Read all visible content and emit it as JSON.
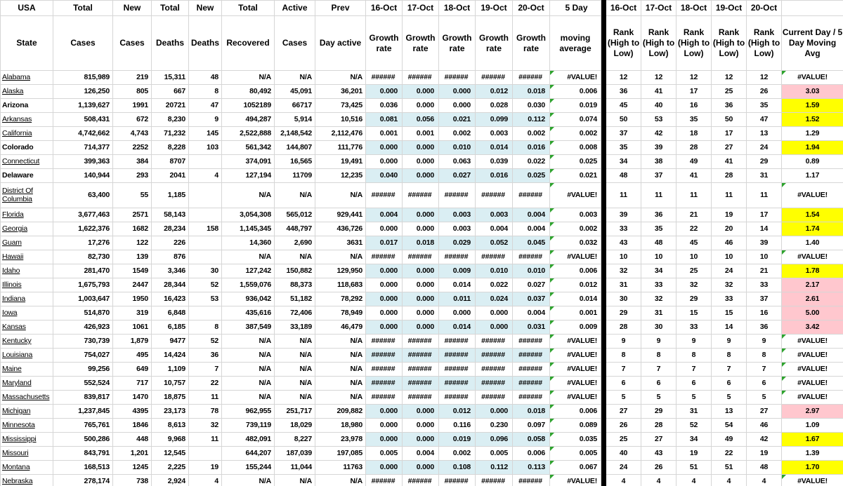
{
  "colors": {
    "band_blue": "#daeef3",
    "alert_pink": "#ffc7ce",
    "highlight_yellow": "#ffff00",
    "divider_black": "#000000",
    "gridline_gray": "#d6d6d6",
    "error_flag_green": "#2da32d"
  },
  "header": {
    "top": [
      "USA",
      "Total",
      "New",
      "Total",
      "New",
      "Total",
      "Active",
      "Prev",
      "16-Oct",
      "17-Oct",
      "18-Oct",
      "19-Oct",
      "20-Oct",
      "5 Day",
      "16-Oct",
      "17-Oct",
      "18-Oct",
      "19-Oct",
      "20-Oct",
      ""
    ],
    "bottom": [
      "State",
      "Cases",
      "Cases",
      "Deaths",
      "Deaths",
      "Recovered",
      "Cases",
      "Day active",
      "Growth rate",
      "Growth rate",
      "Growth rate",
      "Growth rate",
      "Growth rate",
      "moving average",
      "Rank (High to Low)",
      "Rank (High to Low)",
      "Rank (High to Low)",
      "Rank (High to Low)",
      "Rank (High to Low)",
      "Current Day / 5 Day Moving Avg"
    ]
  },
  "rows": [
    {
      "state": "Alabama",
      "style": "link",
      "double": false,
      "band": false,
      "cells": [
        "815,989",
        "219",
        "15,311",
        "48",
        "N/A",
        "N/A",
        "N/A"
      ],
      "growth": [
        "######",
        "######",
        "######",
        "######",
        "######"
      ],
      "avg": "#VALUE!",
      "ranks": [
        "12",
        "12",
        "12",
        "12",
        "12"
      ],
      "ratio": "#VALUE!",
      "ratio_bg": "white"
    },
    {
      "state": "Alaska",
      "style": "link",
      "double": false,
      "band": true,
      "cells": [
        "126,250",
        "805",
        "667",
        "8",
        "80,492",
        "45,091",
        "36,201"
      ],
      "growth": [
        "0.000",
        "0.000",
        "0.000",
        "0.012",
        "0.018"
      ],
      "avg": "0.006",
      "ranks": [
        "36",
        "41",
        "17",
        "25",
        "26"
      ],
      "ratio": "3.03",
      "ratio_bg": "pink"
    },
    {
      "state": "Arizona",
      "style": "bold",
      "double": false,
      "band": false,
      "cells": [
        "1,139,627",
        "1991",
        "20721",
        "47",
        "1052189",
        "66717",
        "73,425"
      ],
      "growth": [
        "0.036",
        "0.000",
        "0.000",
        "0.028",
        "0.030"
      ],
      "avg": "0.019",
      "ranks": [
        "45",
        "40",
        "16",
        "36",
        "35"
      ],
      "ratio": "1.59",
      "ratio_bg": "yellow"
    },
    {
      "state": "Arkansas",
      "style": "link",
      "double": false,
      "band": true,
      "cells": [
        "508,431",
        "672",
        "8,230",
        "9",
        "494,287",
        "5,914",
        "10,516"
      ],
      "growth": [
        "0.081",
        "0.056",
        "0.021",
        "0.099",
        "0.112"
      ],
      "avg": "0.074",
      "ranks": [
        "50",
        "53",
        "35",
        "50",
        "47"
      ],
      "ratio": "1.52",
      "ratio_bg": "yellow"
    },
    {
      "state": "California",
      "style": "link",
      "double": false,
      "band": false,
      "cells": [
        "4,742,662",
        "4,743",
        "71,232",
        "145",
        "2,522,888",
        "2,148,542",
        "2,112,476"
      ],
      "growth": [
        "0.001",
        "0.001",
        "0.002",
        "0.003",
        "0.002"
      ],
      "avg": "0.002",
      "ranks": [
        "37",
        "42",
        "18",
        "17",
        "13"
      ],
      "ratio": "1.29",
      "ratio_bg": "white"
    },
    {
      "state": "Colorado",
      "style": "bold",
      "double": false,
      "band": true,
      "cells": [
        "714,377",
        "2252",
        "8,228",
        "103",
        "561,342",
        "144,807",
        "111,776"
      ],
      "growth": [
        "0.000",
        "0.000",
        "0.010",
        "0.014",
        "0.016"
      ],
      "avg": "0.008",
      "ranks": [
        "35",
        "39",
        "28",
        "27",
        "24"
      ],
      "ratio": "1.94",
      "ratio_bg": "yellow"
    },
    {
      "state": "Connecticut",
      "style": "link",
      "double": false,
      "band": false,
      "cells": [
        "399,363",
        "384",
        "8707",
        "",
        "374,091",
        "16,565",
        "19,491"
      ],
      "growth": [
        "0.000",
        "0.000",
        "0.063",
        "0.039",
        "0.022"
      ],
      "avg": "0.025",
      "ranks": [
        "34",
        "38",
        "49",
        "41",
        "29"
      ],
      "ratio": "0.89",
      "ratio_bg": "white"
    },
    {
      "state": "Delaware",
      "style": "bold",
      "double": false,
      "band": true,
      "cells": [
        "140,944",
        "293",
        "2041",
        "4",
        "127,194",
        "11709",
        "12,235"
      ],
      "growth": [
        "0.040",
        "0.000",
        "0.027",
        "0.016",
        "0.025"
      ],
      "avg": "0.021",
      "ranks": [
        "48",
        "37",
        "41",
        "28",
        "31"
      ],
      "ratio": "1.17",
      "ratio_bg": "white"
    },
    {
      "state": "District Of Columbia",
      "style": "link",
      "double": true,
      "band": false,
      "cells": [
        "63,400",
        "55",
        "1,185",
        "",
        "N/A",
        "N/A",
        "N/A"
      ],
      "growth": [
        "######",
        "######",
        "######",
        "######",
        "######"
      ],
      "avg": "#VALUE!",
      "ranks": [
        "11",
        "11",
        "11",
        "11",
        "11"
      ],
      "ratio": "#VALUE!",
      "ratio_bg": "white"
    },
    {
      "state": "Florida",
      "style": "link",
      "double": false,
      "band": true,
      "cells": [
        "3,677,463",
        "2571",
        "58,143",
        "",
        "3,054,308",
        "565,012",
        "929,441"
      ],
      "growth": [
        "0.004",
        "0.000",
        "0.003",
        "0.003",
        "0.004"
      ],
      "avg": "0.003",
      "ranks": [
        "39",
        "36",
        "21",
        "19",
        "17"
      ],
      "ratio": "1.54",
      "ratio_bg": "yellow"
    },
    {
      "state": "Georgia",
      "style": "link",
      "double": false,
      "band": false,
      "cells": [
        "1,622,376",
        "1682",
        "28,234",
        "158",
        "1,145,345",
        "448,797",
        "436,726"
      ],
      "growth": [
        "0.000",
        "0.000",
        "0.003",
        "0.004",
        "0.004"
      ],
      "avg": "0.002",
      "ranks": [
        "33",
        "35",
        "22",
        "20",
        "14"
      ],
      "ratio": "1.74",
      "ratio_bg": "yellow"
    },
    {
      "state": "Guam",
      "style": "link",
      "double": false,
      "band": true,
      "cells": [
        "17,276",
        "122",
        "226",
        "",
        "14,360",
        "2,690",
        "3631"
      ],
      "growth": [
        "0.017",
        "0.018",
        "0.029",
        "0.052",
        "0.045"
      ],
      "avg": "0.032",
      "ranks": [
        "43",
        "48",
        "45",
        "46",
        "39"
      ],
      "ratio": "1.40",
      "ratio_bg": "white"
    },
    {
      "state": "Hawaii",
      "style": "link",
      "double": false,
      "band": false,
      "cells": [
        "82,730",
        "139",
        "876",
        "",
        "N/A",
        "N/A",
        "N/A"
      ],
      "growth": [
        "######",
        "######",
        "######",
        "######",
        "######"
      ],
      "avg": "#VALUE!",
      "ranks": [
        "10",
        "10",
        "10",
        "10",
        "10"
      ],
      "ratio": "#VALUE!",
      "ratio_bg": "white"
    },
    {
      "state": "Idaho",
      "style": "link",
      "double": false,
      "band": true,
      "cells": [
        "281,470",
        "1549",
        "3,346",
        "30",
        "127,242",
        "150,882",
        "129,950"
      ],
      "growth": [
        "0.000",
        "0.000",
        "0.009",
        "0.010",
        "0.010"
      ],
      "avg": "0.006",
      "ranks": [
        "32",
        "34",
        "25",
        "24",
        "21"
      ],
      "ratio": "1.78",
      "ratio_bg": "yellow"
    },
    {
      "state": "Illinois",
      "style": "link",
      "double": false,
      "band": false,
      "cells": [
        "1,675,793",
        "2447",
        "28,344",
        "52",
        "1,559,076",
        "88,373",
        "118,683"
      ],
      "growth": [
        "0.000",
        "0.000",
        "0.014",
        "0.022",
        "0.027"
      ],
      "avg": "0.012",
      "ranks": [
        "31",
        "33",
        "32",
        "32",
        "33"
      ],
      "ratio": "2.17",
      "ratio_bg": "pink"
    },
    {
      "state": "Indiana",
      "style": "link",
      "double": false,
      "band": true,
      "cells": [
        "1,003,647",
        "1950",
        "16,423",
        "53",
        "936,042",
        "51,182",
        "78,292"
      ],
      "growth": [
        "0.000",
        "0.000",
        "0.011",
        "0.024",
        "0.037"
      ],
      "avg": "0.014",
      "ranks": [
        "30",
        "32",
        "29",
        "33",
        "37"
      ],
      "ratio": "2.61",
      "ratio_bg": "pink"
    },
    {
      "state": "Iowa",
      "style": "link",
      "double": false,
      "band": false,
      "cells": [
        "514,870",
        "319",
        "6,848",
        "",
        "435,616",
        "72,406",
        "78,949"
      ],
      "growth": [
        "0.000",
        "0.000",
        "0.000",
        "0.000",
        "0.004"
      ],
      "avg": "0.001",
      "ranks": [
        "29",
        "31",
        "15",
        "15",
        "16"
      ],
      "ratio": "5.00",
      "ratio_bg": "pink"
    },
    {
      "state": "Kansas",
      "style": "link",
      "double": false,
      "band": true,
      "cells": [
        "426,923",
        "1061",
        "6,185",
        "8",
        "387,549",
        "33,189",
        "46,479"
      ],
      "growth": [
        "0.000",
        "0.000",
        "0.014",
        "0.000",
        "0.031"
      ],
      "avg": "0.009",
      "ranks": [
        "28",
        "30",
        "33",
        "14",
        "36"
      ],
      "ratio": "3.42",
      "ratio_bg": "pink"
    },
    {
      "state": "Kentucky",
      "style": "link",
      "double": false,
      "band": false,
      "cells": [
        "730,739",
        "1,879",
        "9477",
        "52",
        "N/A",
        "N/A",
        "N/A"
      ],
      "growth": [
        "######",
        "######",
        "######",
        "######",
        "######"
      ],
      "avg": "#VALUE!",
      "ranks": [
        "9",
        "9",
        "9",
        "9",
        "9"
      ],
      "ratio": "#VALUE!",
      "ratio_bg": "white"
    },
    {
      "state": "Louisiana",
      "style": "link",
      "double": false,
      "band": true,
      "cells": [
        "754,027",
        "495",
        "14,424",
        "36",
        "N/A",
        "N/A",
        "N/A"
      ],
      "growth": [
        "######",
        "######",
        "######",
        "######",
        "######"
      ],
      "avg": "#VALUE!",
      "ranks": [
        "8",
        "8",
        "8",
        "8",
        "8"
      ],
      "ratio": "#VALUE!",
      "ratio_bg": "white"
    },
    {
      "state": "Maine",
      "style": "link",
      "double": false,
      "band": false,
      "cells": [
        "99,256",
        "649",
        "1,109",
        "7",
        "N/A",
        "N/A",
        "N/A"
      ],
      "growth": [
        "######",
        "######",
        "######",
        "######",
        "######"
      ],
      "avg": "#VALUE!",
      "ranks": [
        "7",
        "7",
        "7",
        "7",
        "7"
      ],
      "ratio": "#VALUE!",
      "ratio_bg": "white"
    },
    {
      "state": "Maryland",
      "style": "link",
      "double": false,
      "band": true,
      "cells": [
        "552,524",
        "717",
        "10,757",
        "22",
        "N/A",
        "N/A",
        "N/A"
      ],
      "growth": [
        "######",
        "######",
        "######",
        "######",
        "######"
      ],
      "avg": "#VALUE!",
      "ranks": [
        "6",
        "6",
        "6",
        "6",
        "6"
      ],
      "ratio": "#VALUE!",
      "ratio_bg": "white"
    },
    {
      "state": "Massachusetts",
      "style": "link",
      "double": false,
      "band": false,
      "cells": [
        "839,817",
        "1470",
        "18,875",
        "11",
        "N/A",
        "N/A",
        "N/A"
      ],
      "growth": [
        "######",
        "######",
        "######",
        "######",
        "######"
      ],
      "avg": "#VALUE!",
      "ranks": [
        "5",
        "5",
        "5",
        "5",
        "5"
      ],
      "ratio": "#VALUE!",
      "ratio_bg": "white"
    },
    {
      "state": "Michigan",
      "style": "link",
      "double": false,
      "band": true,
      "cells": [
        "1,237,845",
        "4395",
        "23,173",
        "78",
        "962,955",
        "251,717",
        "209,882"
      ],
      "growth": [
        "0.000",
        "0.000",
        "0.012",
        "0.000",
        "0.018"
      ],
      "avg": "0.006",
      "ranks": [
        "27",
        "29",
        "31",
        "13",
        "27"
      ],
      "ratio": "2.97",
      "ratio_bg": "pink"
    },
    {
      "state": "Minnesota",
      "style": "link",
      "double": false,
      "band": false,
      "cells": [
        "765,761",
        "1846",
        "8,613",
        "32",
        "739,119",
        "18,029",
        "18,980"
      ],
      "growth": [
        "0.000",
        "0.000",
        "0.116",
        "0.230",
        "0.097"
      ],
      "avg": "0.089",
      "ranks": [
        "26",
        "28",
        "52",
        "54",
        "46"
      ],
      "ratio": "1.09",
      "ratio_bg": "white"
    },
    {
      "state": "Mississippi",
      "style": "link",
      "double": false,
      "band": true,
      "cells": [
        "500,286",
        "448",
        "9,968",
        "11",
        "482,091",
        "8,227",
        "23,978"
      ],
      "growth": [
        "0.000",
        "0.000",
        "0.019",
        "0.096",
        "0.058"
      ],
      "avg": "0.035",
      "ranks": [
        "25",
        "27",
        "34",
        "49",
        "42"
      ],
      "ratio": "1.67",
      "ratio_bg": "yellow"
    },
    {
      "state": "Missouri",
      "style": "link",
      "double": false,
      "band": false,
      "cells": [
        "843,791",
        "1,201",
        "12,545",
        "",
        "644,207",
        "187,039",
        "197,085"
      ],
      "growth": [
        "0.005",
        "0.004",
        "0.002",
        "0.005",
        "0.006"
      ],
      "avg": "0.005",
      "ranks": [
        "40",
        "43",
        "19",
        "22",
        "19"
      ],
      "ratio": "1.39",
      "ratio_bg": "white"
    },
    {
      "state": "Montana",
      "style": "link",
      "double": false,
      "band": true,
      "cells": [
        "168,513",
        "1245",
        "2,225",
        "19",
        "155,244",
        "11,044",
        "11763"
      ],
      "growth": [
        "0.000",
        "0.000",
        "0.108",
        "0.112",
        "0.113"
      ],
      "avg": "0.067",
      "ranks": [
        "24",
        "26",
        "51",
        "51",
        "48"
      ],
      "ratio": "1.70",
      "ratio_bg": "yellow"
    },
    {
      "state": "Nebraska",
      "style": "link",
      "double": false,
      "band": false,
      "cells": [
        "278,174",
        "738",
        "2,924",
        "4",
        "N/A",
        "N/A",
        "N/A"
      ],
      "growth": [
        "######",
        "######",
        "######",
        "######",
        "######"
      ],
      "avg": "#VALUE!",
      "ranks": [
        "4",
        "4",
        "4",
        "4",
        "4"
      ],
      "ratio": "#VALUE!",
      "ratio_bg": "white"
    }
  ]
}
